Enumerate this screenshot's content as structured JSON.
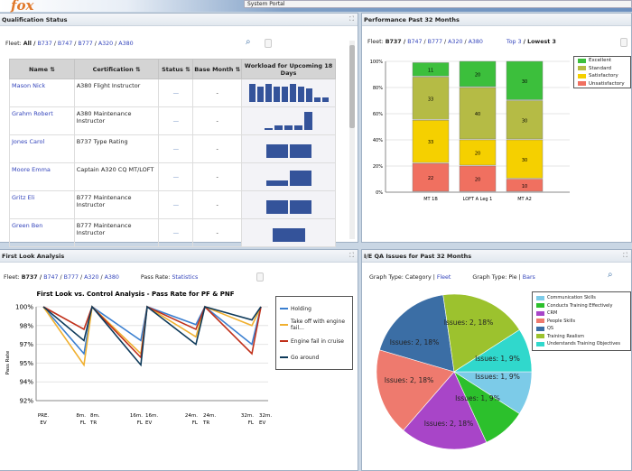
{
  "header": {
    "logo": "fox",
    "portal": "System Portal"
  },
  "qual": {
    "title": "Qualification Status",
    "fleet_label": "Fleet:",
    "fleet_all": "All /",
    "fleets": [
      "B737",
      "B747",
      "B777",
      "A320",
      "A380"
    ],
    "columns": [
      "Name",
      "Certification",
      "Status",
      "Base Month",
      "Workload for Upcoming 18 Days"
    ],
    "rows": [
      {
        "name": "Mason Nick",
        "cert": "A380 Flight Instructor",
        "status": "—",
        "base": "-",
        "workload": [
          8,
          7,
          8,
          7,
          7,
          8,
          7,
          6,
          2,
          2
        ]
      },
      {
        "name": "Grahm Robert",
        "cert": "A380 Maintenance Instructor",
        "status": "—",
        "base": "-",
        "workload": [
          1,
          2,
          2,
          2,
          8
        ]
      },
      {
        "name": "Jones Carol",
        "cert": "B737 Type Rating",
        "status": "—",
        "base": "-",
        "workload": [
          6,
          6
        ]
      },
      {
        "name": "Moore Emma",
        "cert": "Captain A320 CQ MT/LOFT",
        "status": "—",
        "base": "-",
        "workload": [
          2.5,
          7
        ]
      },
      {
        "name": "Gritz Eli",
        "cert": "B777 Maintenance Instructor",
        "status": "—",
        "base": "-",
        "workload": [
          6,
          6
        ]
      },
      {
        "name": "Green Ben",
        "cert": "B777 Maintenance Instructor",
        "status": "—",
        "base": "-",
        "workload": [
          6
        ]
      }
    ]
  },
  "perf": {
    "title": "Performance Past 32 Months",
    "fleet_label": "Fleet:",
    "fleet_sel": "B737 /",
    "fleets": [
      "B747",
      "B777",
      "A320",
      "A380"
    ],
    "top": "Top 3",
    "lowest": "/ Lowest 3"
  },
  "first": {
    "title": "First Look Analysis",
    "fleet_label": "Fleet:",
    "fleet_sel": "B737 /",
    "fleets": [
      "B747",
      "B777",
      "A320",
      "A380"
    ],
    "pass_label": "Pass Rate:",
    "stats": "Statistics"
  },
  "qa": {
    "title": "I/E QA Issues for Past 32 Months",
    "gt1": "Graph Type:",
    "cat": "Category",
    "fleet": "Fleet",
    "gt2": "Graph Type:",
    "pie": "Pie",
    "bars": "Bars"
  },
  "chart_data": [
    {
      "type": "bar",
      "stacked": true,
      "categories": [
        "MT 1B",
        "LOFT A Leg 1",
        "MT A2"
      ],
      "yticks": [
        "0%",
        "20%",
        "40%",
        "60%",
        "80%",
        "100%"
      ],
      "ylim": [
        0,
        100
      ],
      "legend": "top-right",
      "series": [
        {
          "name": "Excellent",
          "color": "#3cbf3c",
          "values": [
            11,
            20,
            30
          ]
        },
        {
          "name": "Standard",
          "color": "#b5bb45",
          "values": [
            33,
            40,
            30
          ]
        },
        {
          "name": "Satisfactory",
          "color": "#f5d000",
          "values": [
            33,
            20,
            30
          ]
        },
        {
          "name": "Unsatisfactory",
          "color": "#f07060",
          "values": [
            22,
            20,
            10
          ]
        }
      ]
    },
    {
      "type": "line",
      "title": "First Look vs. Control Analysis - Pass Rate for PF & PNF",
      "ylabel": "Pass Rate",
      "yticks": [
        92,
        94,
        95,
        97,
        98,
        100
      ],
      "ytick_labels": [
        "92%",
        "94%",
        "95%",
        "97%",
        "98%",
        "100%"
      ],
      "legend": "right",
      "categories": [
        "PRE. EV",
        "8m. FL",
        "8m. TR",
        "16m. FL",
        "16m. EV",
        "24m. FL",
        "24m. TR",
        "32m. FL",
        "32m. EV"
      ],
      "series": [
        {
          "name": "Holding",
          "color": "#3a7fd0",
          "values": [
            100,
            96,
            100,
            97.2,
            100,
            98.1,
            100,
            97,
            100
          ]
        },
        {
          "name": "Take off with engine fail...",
          "color": "#f0b030",
          "values": [
            100,
            94.9,
            100,
            96,
            100,
            97.4,
            100,
            98,
            100
          ]
        },
        {
          "name": "Engine fail in cruise",
          "color": "#c0301a",
          "values": [
            100,
            97.8,
            100,
            95.6,
            100,
            97.8,
            100,
            96,
            100
          ]
        },
        {
          "name": "Go around",
          "color": "#0e3a5a",
          "values": [
            100,
            97.2,
            100,
            94.9,
            100,
            97,
            100,
            98.6,
            100
          ]
        }
      ]
    },
    {
      "type": "pie",
      "legend": "top-right",
      "slices": [
        {
          "name": "Communication Skills",
          "value": 1,
          "label": "Issues: 1, 9%",
          "color": "#7ccbe8"
        },
        {
          "name": "Conducts Training Effectively",
          "value": 1,
          "label": "Issues: 1, 9%",
          "color": "#2cc02c"
        },
        {
          "name": "CRM",
          "value": 2,
          "label": "Issues: 2, 18%",
          "color": "#a845c8"
        },
        {
          "name": "People Skills",
          "value": 2,
          "label": "Issues: 2, 18%",
          "color": "#ee7a6e"
        },
        {
          "name": "QS",
          "value": 2,
          "label": "Issues: 2, 18%",
          "color": "#3b6ea5"
        },
        {
          "name": "Training Realism",
          "value": 2,
          "label": "Issues: 2, 18%",
          "color": "#9cc22e"
        },
        {
          "name": "Understands Training Objectives",
          "value": 1,
          "label": "Issues: 1, 9%",
          "color": "#30d8cc"
        }
      ]
    }
  ]
}
